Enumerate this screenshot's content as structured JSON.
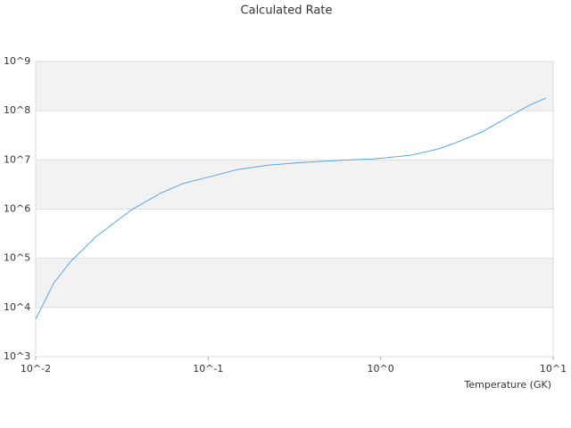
{
  "chart_data": {
    "type": "line",
    "title": "Calculated Rate",
    "x_label": "Temperature (GK)",
    "x": [
      0.01,
      0.0127,
      0.016,
      0.0225,
      0.0362,
      0.053,
      0.0714,
      0.096,
      0.146,
      0.221,
      0.356,
      0.574,
      0.924,
      1.49,
      2.13,
      2.7,
      3.86,
      5.5,
      7.43,
      9.1
    ],
    "values": [
      5800,
      31000,
      87000,
      280000,
      980000,
      2100000,
      3300000,
      4300000,
      6300000,
      7800000,
      8900000,
      9800000,
      10500000,
      12400000,
      16500000,
      22000000,
      37000000,
      75000000,
      134000000,
      180000000
    ],
    "color": "#5aa5e6",
    "xlog": true,
    "ylog": true,
    "xlim": [
      0.01,
      10
    ],
    "ylim": [
      1000,
      1000000000
    ],
    "xticks": [
      {
        "value": 0.01,
        "label": "10^-2"
      },
      {
        "value": 0.1,
        "label": "10^-1"
      },
      {
        "value": 1,
        "label": "10^0"
      },
      {
        "value": 10,
        "label": "10^1"
      }
    ],
    "yticks": [
      {
        "value": 1000,
        "label": "10^3"
      },
      {
        "value": 10000,
        "label": "10^4"
      },
      {
        "value": 100000,
        "label": "10^5"
      },
      {
        "value": 1000000,
        "label": "10^6"
      },
      {
        "value": 10000000,
        "label": "10^7"
      },
      {
        "value": 100000000,
        "label": "10^8"
      },
      {
        "value": 1000000000,
        "label": "10^9"
      }
    ],
    "grid": true,
    "bands": true
  }
}
